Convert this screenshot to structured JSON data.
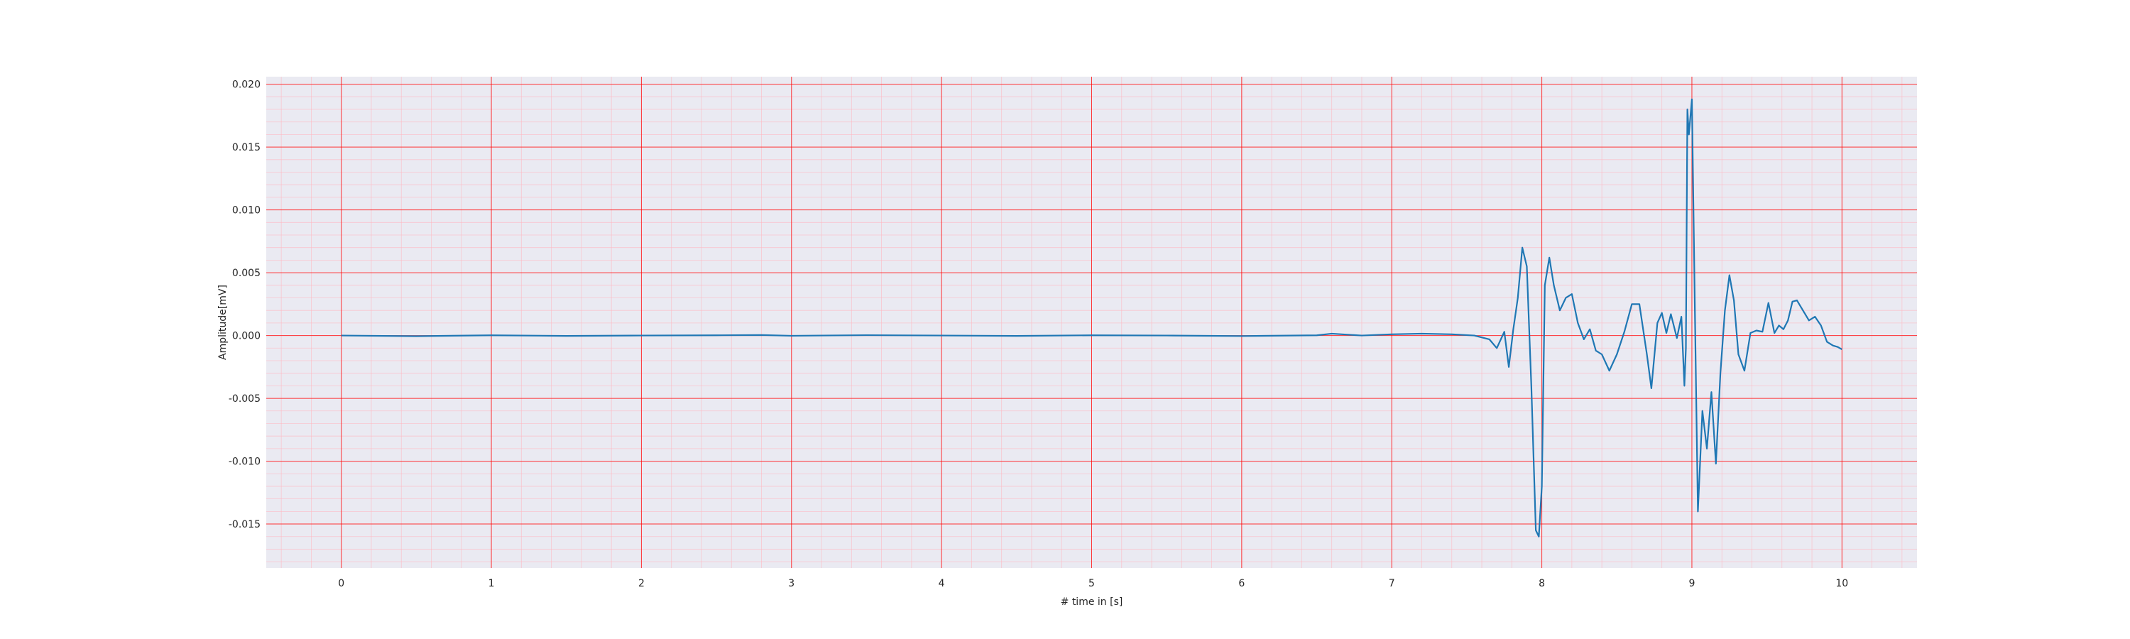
{
  "chart_data": {
    "type": "line",
    "title": "",
    "xlabel": "# time in [s]",
    "ylabel": "Amplitude[mV]",
    "xlim": [
      -0.5,
      10.5
    ],
    "ylim": [
      -0.0185,
      0.0206
    ],
    "x_ticks": [
      0,
      1,
      2,
      3,
      4,
      5,
      6,
      7,
      8,
      9,
      10
    ],
    "x_tick_labels": [
      "0",
      "1",
      "2",
      "3",
      "4",
      "5",
      "6",
      "7",
      "8",
      "9",
      "10"
    ],
    "y_ticks": [
      -0.015,
      -0.01,
      -0.005,
      0.0,
      0.005,
      0.01,
      0.015,
      0.02
    ],
    "y_tick_labels": [
      "-0.015",
      "-0.010",
      "-0.005",
      "0.000",
      "0.005",
      "0.010",
      "0.015",
      "0.020"
    ],
    "grid": true,
    "minor_grid": true,
    "colors": {
      "plot_background": "#eaeaf2",
      "major_grid": "#ff0000",
      "minor_grid": "#ffb6c1",
      "line": "#1f77b4"
    },
    "series": [
      {
        "x": [
          0.0,
          0.5,
          1.0,
          1.5,
          2.0,
          2.5,
          2.8,
          3.0,
          3.5,
          4.0,
          4.5,
          5.0,
          5.5,
          6.0,
          6.5,
          6.6,
          6.8,
          7.0,
          7.2,
          7.4,
          7.55,
          7.65,
          7.7,
          7.75,
          7.78,
          7.81,
          7.84,
          7.87,
          7.9,
          7.93,
          7.96,
          7.98,
          8.0,
          8.02,
          8.05,
          8.08,
          8.12,
          8.16,
          8.2,
          8.24,
          8.28,
          8.32,
          8.36,
          8.4,
          8.45,
          8.5,
          8.55,
          8.6,
          8.65,
          8.7,
          8.73,
          8.77,
          8.8,
          8.83,
          8.86,
          8.9,
          8.93,
          8.95,
          8.96,
          8.97,
          8.98,
          9.0,
          9.02,
          9.04,
          9.07,
          9.1,
          9.13,
          9.16,
          9.19,
          9.22,
          9.25,
          9.28,
          9.31,
          9.35,
          9.39,
          9.43,
          9.47,
          9.51,
          9.55,
          9.58,
          9.61,
          9.64,
          9.67,
          9.7,
          9.74,
          9.78,
          9.82,
          9.86,
          9.9,
          9.94,
          9.97,
          10.0
        ],
        "y": [
          0.0,
          -5e-05,
          2e-05,
          -3e-05,
          0.0,
          2e-05,
          4e-05,
          -2e-05,
          3e-05,
          0.0,
          -3e-05,
          2e-05,
          0.0,
          -4e-05,
          2e-05,
          0.00015,
          0.0,
          0.0001,
          0.00015,
          0.0001,
          0.0,
          -0.0003,
          -0.001,
          0.0003,
          -0.0025,
          0.0005,
          0.003,
          0.007,
          0.0055,
          -0.004,
          -0.0155,
          -0.016,
          -0.012,
          0.004,
          0.0062,
          0.004,
          0.002,
          0.003,
          0.0033,
          0.001,
          -0.0003,
          0.0005,
          -0.0012,
          -0.0015,
          -0.0028,
          -0.0015,
          0.0003,
          0.0025,
          0.0025,
          -0.0015,
          -0.0042,
          0.001,
          0.0018,
          0.0002,
          0.0017,
          -0.0002,
          0.0015,
          -0.004,
          -0.001,
          0.018,
          0.016,
          0.0188,
          0.002,
          -0.014,
          -0.006,
          -0.009,
          -0.0045,
          -0.0102,
          -0.003,
          0.002,
          0.0048,
          0.0028,
          -0.0015,
          -0.0028,
          0.0002,
          0.0004,
          0.0003,
          0.0026,
          0.0002,
          0.0008,
          0.0005,
          0.0012,
          0.0027,
          0.0028,
          0.002,
          0.0012,
          0.0015,
          0.0008,
          -0.0005,
          -0.0008,
          -0.0009,
          -0.0011
        ]
      }
    ]
  }
}
